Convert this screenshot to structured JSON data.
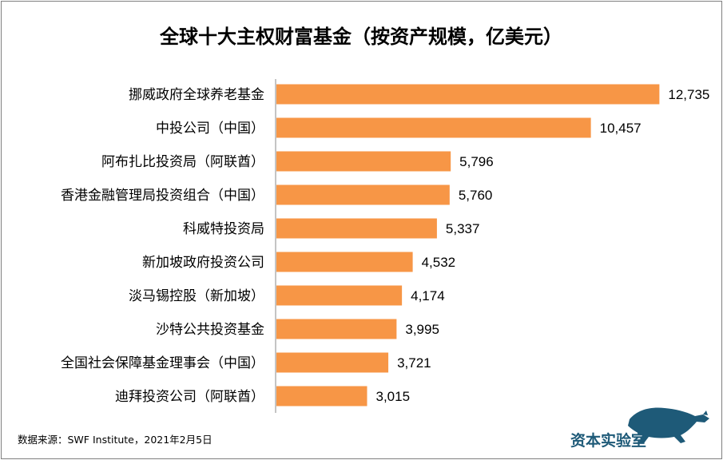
{
  "chart_data": {
    "type": "bar",
    "orientation": "horizontal",
    "title": "全球十大主权财富基金（按资产规模，亿美元）",
    "categories": [
      "挪威政府全球养老基金",
      "中投公司（中国）",
      "阿布扎比投资局（阿联酋）",
      "香港金融管理局投资组合（中国）",
      "科威特投资局",
      "新加坡政府投资公司",
      "淡马锡控股（新加坡）",
      "沙特公共投资基金",
      "全国社会保障基金理事会（中国）",
      "迪拜投资公司（阿联酋）"
    ],
    "values": [
      12735,
      10457,
      5796,
      5760,
      5337,
      4532,
      4174,
      3995,
      3721,
      3015
    ],
    "value_labels": [
      "12,735",
      "10,457",
      "5,796",
      "5,760",
      "5,337",
      "4,532",
      "4,174",
      "3,995",
      "3,721",
      "3,015"
    ],
    "xlim": [
      0,
      14000
    ],
    "bar_color": "#f79646",
    "grid": false,
    "legend": false
  },
  "source_note": "数据来源：SWF Institute，2021年2月5日",
  "brand": {
    "name": "资本实验室",
    "logo_icon": "panther-icon",
    "color": "#1e5a78"
  }
}
